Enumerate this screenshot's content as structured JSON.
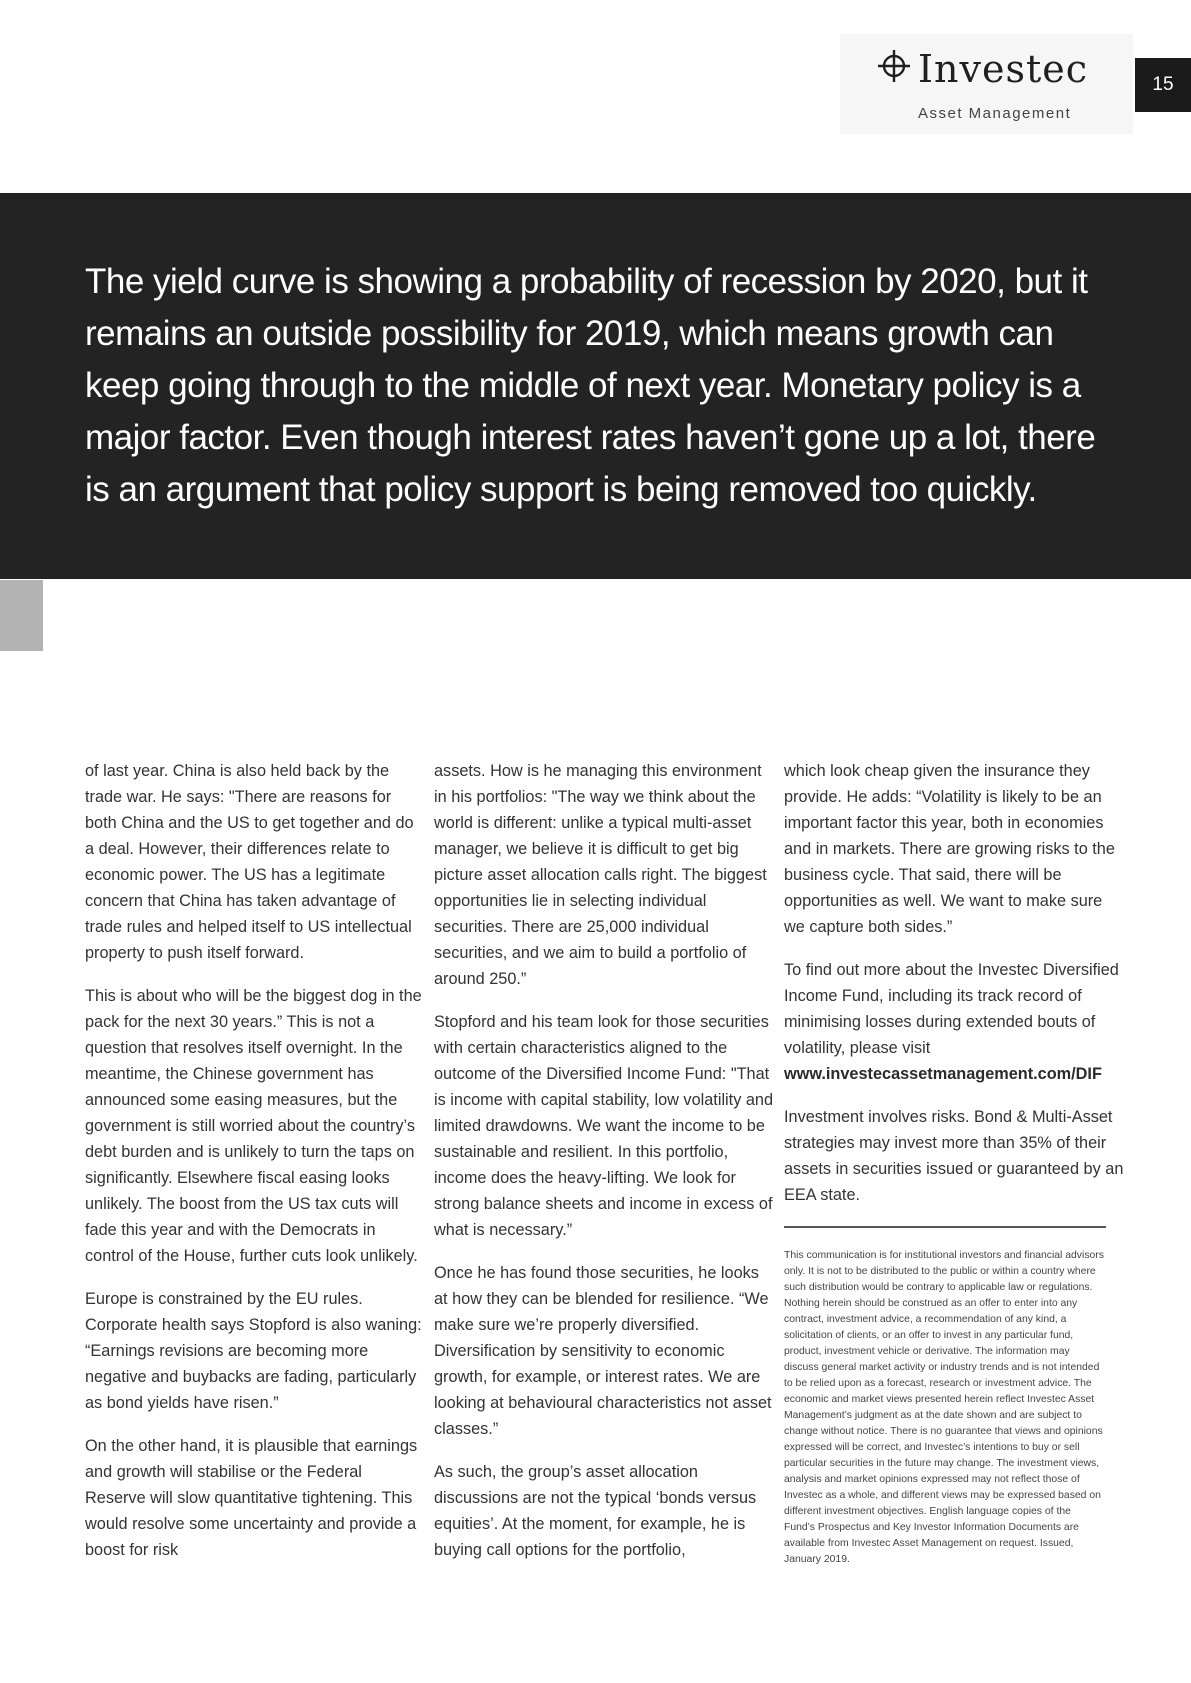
{
  "header": {
    "brand_name": "Investec",
    "brand_sub": "Asset Management",
    "page_number": "15"
  },
  "banner": {
    "quote": "The yield curve is showing a probability of recession by 2020, but it remains an outside possibility for 2019, which means growth can keep going through to the middle of next year. Monetary policy is a major factor. Even though interest rates haven’t gone up a lot, there is an argument that policy support is being removed too quickly."
  },
  "col1": {
    "p1": "of last year. China is also held back by the trade war. He says: \"There are reasons for both China and the US to get together and do a deal. However, their differences relate to economic power. The US has a legitimate concern that China has taken advantage of trade rules and helped itself to US intellectual property to push itself forward.",
    "p2": "This is about who will be the biggest dog in the pack for the next 30 years.” This is not a question that resolves itself overnight. In the meantime, the Chinese government has announced some easing measures, but the government is still worried about the country’s debt burden and is unlikely to turn the taps on significantly. Elsewhere fiscal easing looks unlikely. The boost from the US tax cuts will fade this year and with the Democrats in control of the House, further cuts look unlikely.",
    "p3": "Europe is constrained by the EU rules. Corporate health says Stopford is also waning: “Earnings revisions are becoming more negative and buybacks are fading, particularly as bond yields have risen.”",
    "p4": "On the other hand, it is plausible that earnings and growth will stabilise or the Federal Reserve will slow quantitative tightening. This would resolve some uncertainty and provide a boost for risk"
  },
  "col2": {
    "p1": "assets. How is he managing this environment in his portfolios: \"The way we think about the world is different: unlike a typical multi-asset manager, we believe it is difficult to get big picture asset allocation calls right. The biggest opportunities lie in selecting individual securities. There are 25,000 individual securities, and we aim to build a portfolio of around 250.”",
    "p2": "Stopford and his team look for those securities with certain characteristics aligned to the outcome of the Diversified Income Fund: \"That is income with capital stability, low volatility and limited drawdowns. We want the income to be sustainable and resilient. In this portfolio, income does the heavy-lifting. We look for strong balance sheets and income in excess of what is necessary.”",
    "p3": "Once he has found those securities, he looks at how they can be blended for resilience. “We make sure we’re properly diversified. Diversification by sensitivity to economic growth, for example, or interest rates. We are looking at behavioural characteristics not asset classes.”",
    "p4": "As such, the group’s asset allocation discussions are not the typical ‘bonds versus equities’. At the moment, for example, he is buying call options for the portfolio,"
  },
  "col3": {
    "p1": "which look cheap given the insurance they provide. He adds: “Volatility is likely to be an important factor this year, both in economies and in markets. There are growing risks to the business cycle. That said, there will be opportunities as well. We want to make sure we capture both sides.”",
    "p2_text": "To find out more about the Investec Diversified Income Fund, including its track record of minimising losses during extended bouts of volatility, please visit",
    "p2_link": "www.investecassetmanagement.com/DIF",
    "p3": "Investment involves risks. Bond & Multi-Asset strategies may invest more than 35% of their assets in securities issued or guaranteed by an EEA state.",
    "disclaimer": "This communication is for institutional investors and financial advisors only. It is not to be distributed to the public or within a country where such distribution would be contrary to applicable law or regulations. Nothing herein should be construed as an offer to enter into any contract, investment advice, a recommendation of any kind, a solicitation of clients, or an offer to invest in any particular fund, product, investment vehicle or derivative. The information may discuss general market activity or industry trends and is not intended to be relied upon as a forecast, research or investment advice. The economic and market views presented herein reflect Investec Asset Management’s judgment as at the date shown and are subject to change without notice. There is no guarantee that views and opinions expressed will be correct, and Investec’s intentions to buy or sell particular securities in the future may change. The investment views, analysis and market opinions expressed may not reflect those of Investec as a whole, and different views may be expressed based on different investment objectives. English language copies of the Fund’s Prospectus and Key Investor Information Documents are available from Investec Asset Management on request. Issued, January 2019."
  }
}
